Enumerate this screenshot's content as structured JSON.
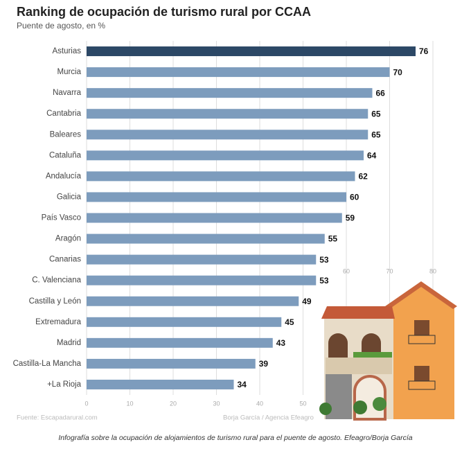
{
  "chart_data": {
    "type": "bar",
    "orientation": "horizontal",
    "title": "Ranking de ocupación de turismo rural por CCAA",
    "subtitle": "Puente de agosto, en %",
    "categories": [
      "Asturias",
      "Murcia",
      "Navarra",
      "Cantabria",
      "Baleares",
      "Cataluña",
      "Andalucía",
      "Galicia",
      "País Vasco",
      "Aragón",
      "Canarias",
      "C. Valenciana",
      "Castilla y León",
      "Extremadura",
      "Madrid",
      "Castilla-La Mancha",
      "+La Rioja"
    ],
    "values": [
      76,
      70,
      66,
      65,
      65,
      64,
      62,
      60,
      59,
      55,
      53,
      53,
      49,
      45,
      43,
      39,
      34
    ],
    "colors": [
      "#2c4866",
      "#7d9cbd",
      "#7d9cbd",
      "#7d9cbd",
      "#7d9cbd",
      "#7d9cbd",
      "#7d9cbd",
      "#7d9cbd",
      "#7d9cbd",
      "#7d9cbd",
      "#7d9cbd",
      "#7d9cbd",
      "#7d9cbd",
      "#7d9cbd",
      "#7d9cbd",
      "#7d9cbd",
      "#7d9cbd"
    ],
    "xlim": [
      0,
      80
    ],
    "xticks": [
      0,
      10,
      20,
      30,
      40,
      50,
      60,
      70,
      80
    ],
    "grid": true,
    "source": "Fuente: Escapadarural.com",
    "credit": "Borja García / Agencia Efeagro",
    "caption": "Infografía sobre la ocupación de alojamientos de turismo rural para el puente de agosto. Efeagro/Borja García"
  }
}
